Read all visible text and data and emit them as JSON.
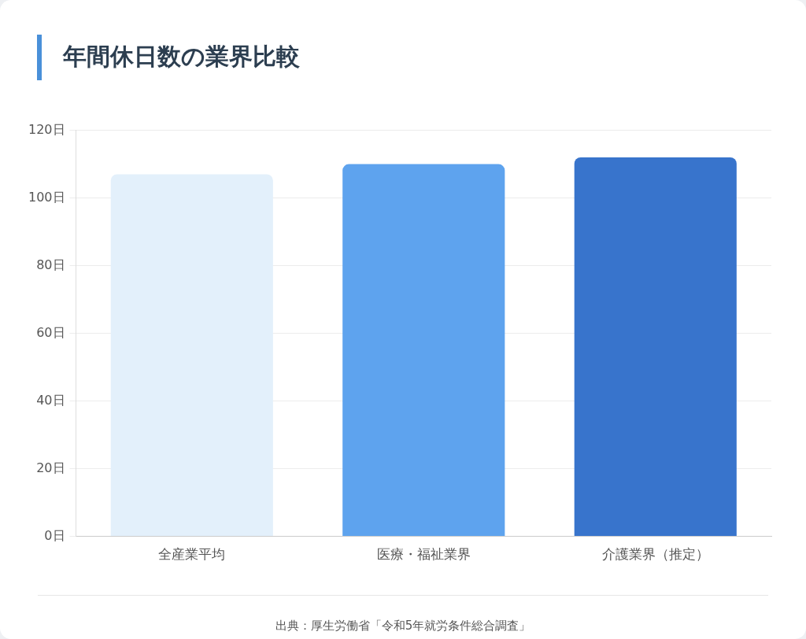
{
  "chart_data": {
    "type": "bar",
    "title": "年間休日数の業界比較",
    "categories": [
      "全産業平均",
      "医療・福祉業界",
      "介護業界（推定）"
    ],
    "values": [
      107,
      110,
      112
    ],
    "colors": [
      "#e3f0fb",
      "#5ea3ee",
      "#3874cc"
    ],
    "ylim": [
      0,
      120
    ],
    "yticks": [
      {
        "value": 0,
        "label": "0日"
      },
      {
        "value": 20,
        "label": "20日"
      },
      {
        "value": 40,
        "label": "40日"
      },
      {
        "value": 60,
        "label": "60日"
      },
      {
        "value": 80,
        "label": "80日"
      },
      {
        "value": 100,
        "label": "100日"
      },
      {
        "value": 120,
        "label": "120日"
      }
    ],
    "grid": "y",
    "legend": false,
    "annotations": [
      "出典：厚生労働省「令和5年就労条件総合調査」"
    ]
  }
}
